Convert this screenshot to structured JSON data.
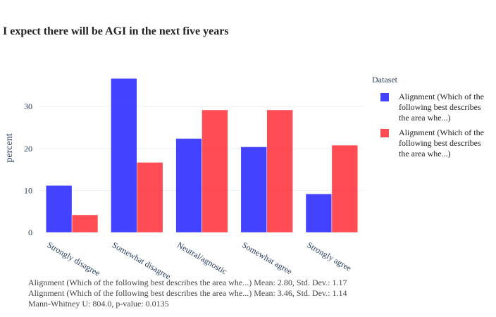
{
  "chart_data": {
    "type": "bar",
    "title": "I expect there will be AGI in the next five years",
    "xlabel": "",
    "ylabel": "percent",
    "categories": [
      "Strongly disagree",
      "Somewhat disagree",
      "Neutral/agnostic",
      "Somewhat agree",
      "Strongly agree"
    ],
    "series": [
      {
        "name": "Alignment (Which of the following best describes the area whe...)",
        "color": "#1414ff",
        "values": [
          11.2,
          36.7,
          22.4,
          20.4,
          9.2
        ]
      },
      {
        "name": "Alignment (Which of the following best describes the area whe...)",
        "color": "#ff1e28",
        "values": [
          4.2,
          16.7,
          29.2,
          29.2,
          20.8
        ]
      }
    ],
    "yticks": [
      0,
      10,
      20,
      30
    ],
    "ylim": [
      0,
      38.6
    ],
    "grid": true,
    "legend": {
      "title": "Dataset",
      "position": "right"
    }
  },
  "legend_labels": [
    "Alignment (Which of the following best describes the area whe...)",
    "Alignment (Which of the following best describes the area whe...)"
  ],
  "annotations": [
    "Alignment (Which of the following best describes the area whe...) Mean: 2.80, Std. Dev.: 1.17",
    "Alignment (Which of the following best describes the area whe...) Mean: 3.46, Std. Dev.: 1.14",
    "Mann-Whitney U: 804.0, p-value: 0.0135"
  ]
}
